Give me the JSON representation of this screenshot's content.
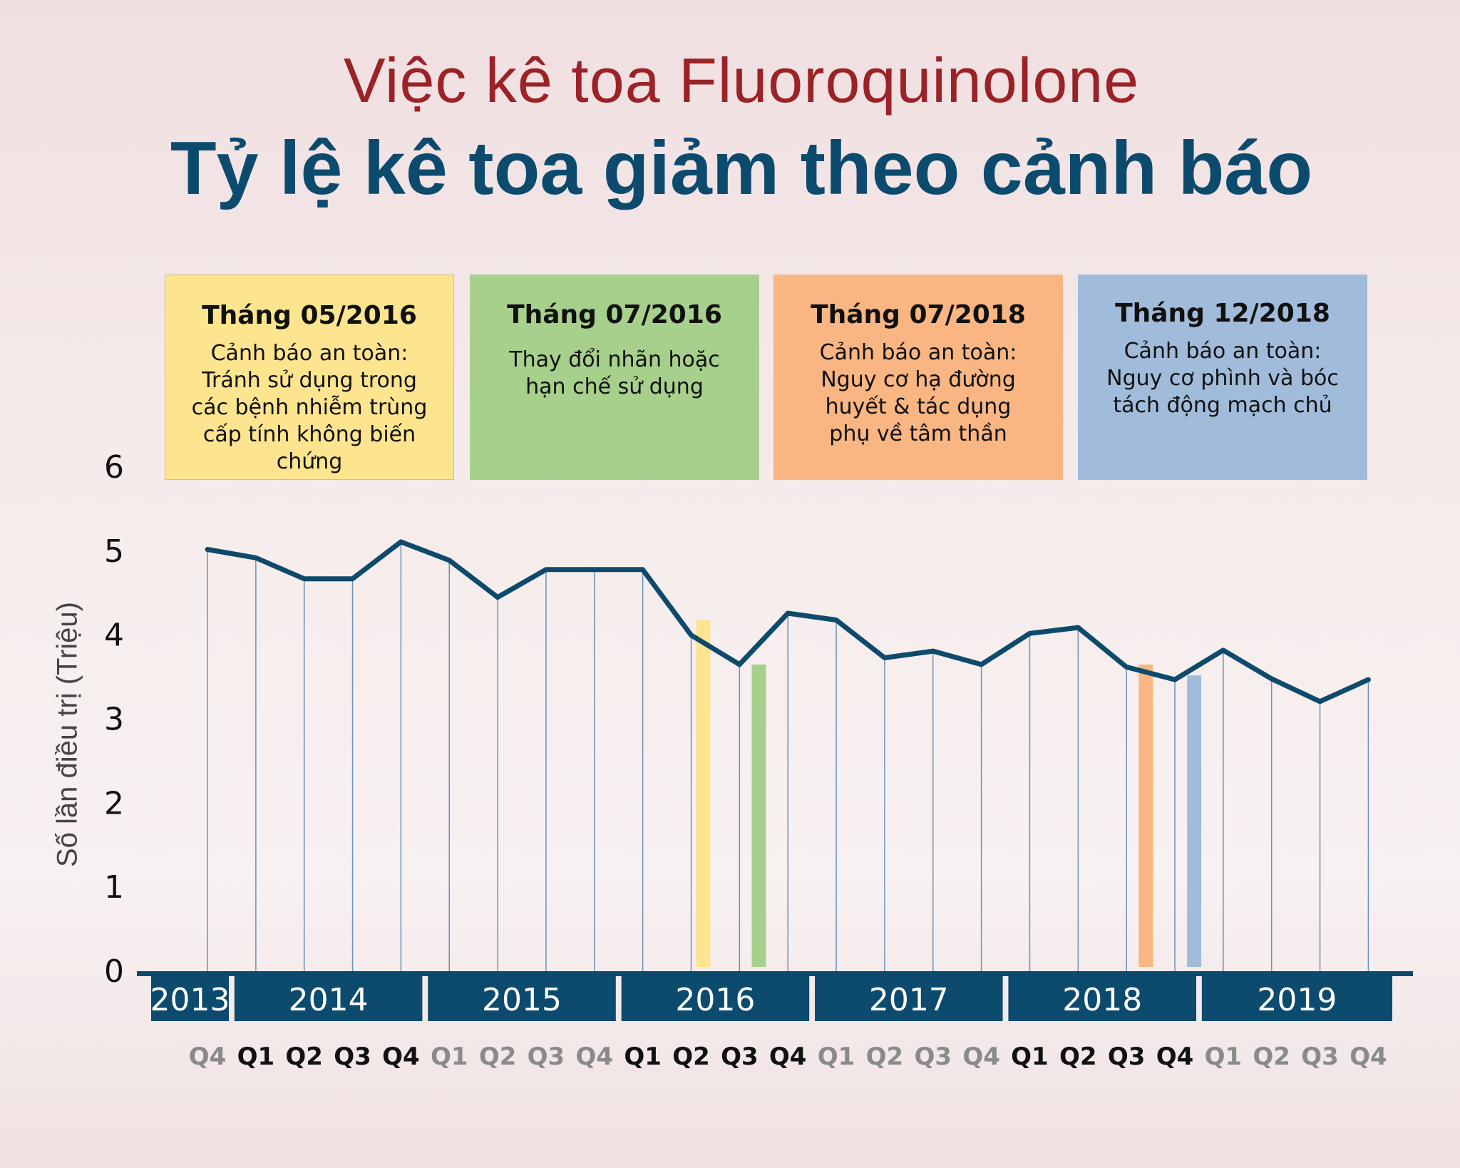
{
  "header": {
    "topic": "Việc kê toa Fluoroquinolone",
    "headline": "Tỷ lệ kê toa giảm theo cảnh báo"
  },
  "events": [
    {
      "date": "Tháng 05/2016",
      "text": "Cảnh báo an toàn: Tránh sử dụng trong các bệnh nhiễm trùng cấp tính không biến chứng",
      "color": "#fde48f"
    },
    {
      "date": "Tháng 07/2016",
      "text": "Thay đổi nhãn hoặc hạn chế sử dụng",
      "color": "#a8d08d"
    },
    {
      "date": "Tháng 07/2018",
      "text": "Cảnh báo an toàn: Nguy cơ hạ đường huyết & tác dụng phụ về tâm thần",
      "color": "#f9b682"
    },
    {
      "date": "Tháng 12/2018",
      "text": "Cảnh báo an toàn: Nguy cơ phình và bóc tách động mạch chủ",
      "color": "#a0bcda"
    }
  ],
  "chart_data": {
    "type": "line",
    "ylabel": "Số lần điều trị (Triệu)",
    "ylim": [
      0,
      6
    ],
    "yticks": [
      "0",
      "1",
      "2",
      "3",
      "4",
      "5",
      "6"
    ],
    "x": [
      "Q4",
      "Q1",
      "Q2",
      "Q3",
      "Q4",
      "Q1",
      "Q2",
      "Q3",
      "Q4",
      "Q1",
      "Q2",
      "Q3",
      "Q4",
      "Q1",
      "Q2",
      "Q3",
      "Q4",
      "Q1",
      "Q2",
      "Q3",
      "Q4",
      "Q1",
      "Q2",
      "Q3",
      "Q4"
    ],
    "x_dark": [
      false,
      true,
      true,
      true,
      true,
      false,
      false,
      false,
      false,
      true,
      true,
      true,
      true,
      false,
      false,
      false,
      false,
      true,
      true,
      true,
      true,
      false,
      false,
      false,
      false
    ],
    "years": [
      {
        "label": "2013",
        "start": 0,
        "end": 0
      },
      {
        "label": "2014",
        "start": 1,
        "end": 4
      },
      {
        "label": "2015",
        "start": 5,
        "end": 8
      },
      {
        "label": "2016",
        "start": 9,
        "end": 12
      },
      {
        "label": "2017",
        "start": 13,
        "end": 16
      },
      {
        "label": "2018",
        "start": 17,
        "end": 20
      },
      {
        "label": "2019",
        "start": 21,
        "end": 24
      }
    ],
    "series": [
      {
        "values": [
          5.02,
          4.92,
          4.67,
          4.67,
          5.11,
          4.89,
          4.45,
          4.78,
          4.78,
          4.78,
          4.0,
          3.65,
          4.26,
          4.18,
          3.73,
          3.81,
          3.65,
          4.02,
          4.09,
          3.62,
          3.47,
          3.82,
          3.48,
          3.21,
          3.47
        ],
        "color": "#0e4a6b"
      }
    ],
    "markers": [
      {
        "event": "Tháng 05/2016",
        "position": 10.25,
        "value": 4.18,
        "color": "#fde48f"
      },
      {
        "event": "Tháng 07/2016",
        "position": 11.4,
        "value": 3.65,
        "color": "#a8d08d"
      },
      {
        "event": "Tháng 07/2018",
        "position": 19.4,
        "value": 3.65,
        "color": "#f9b682"
      },
      {
        "event": "Tháng 12/2018",
        "position": 20.4,
        "value": 3.52,
        "color": "#a0bcda"
      }
    ],
    "grid": true,
    "axis_color": "#0c4a6e",
    "gridline_color": "#6b93b8",
    "tick_dark_color": "#111111",
    "tick_light_color": "#8a8a8a"
  }
}
